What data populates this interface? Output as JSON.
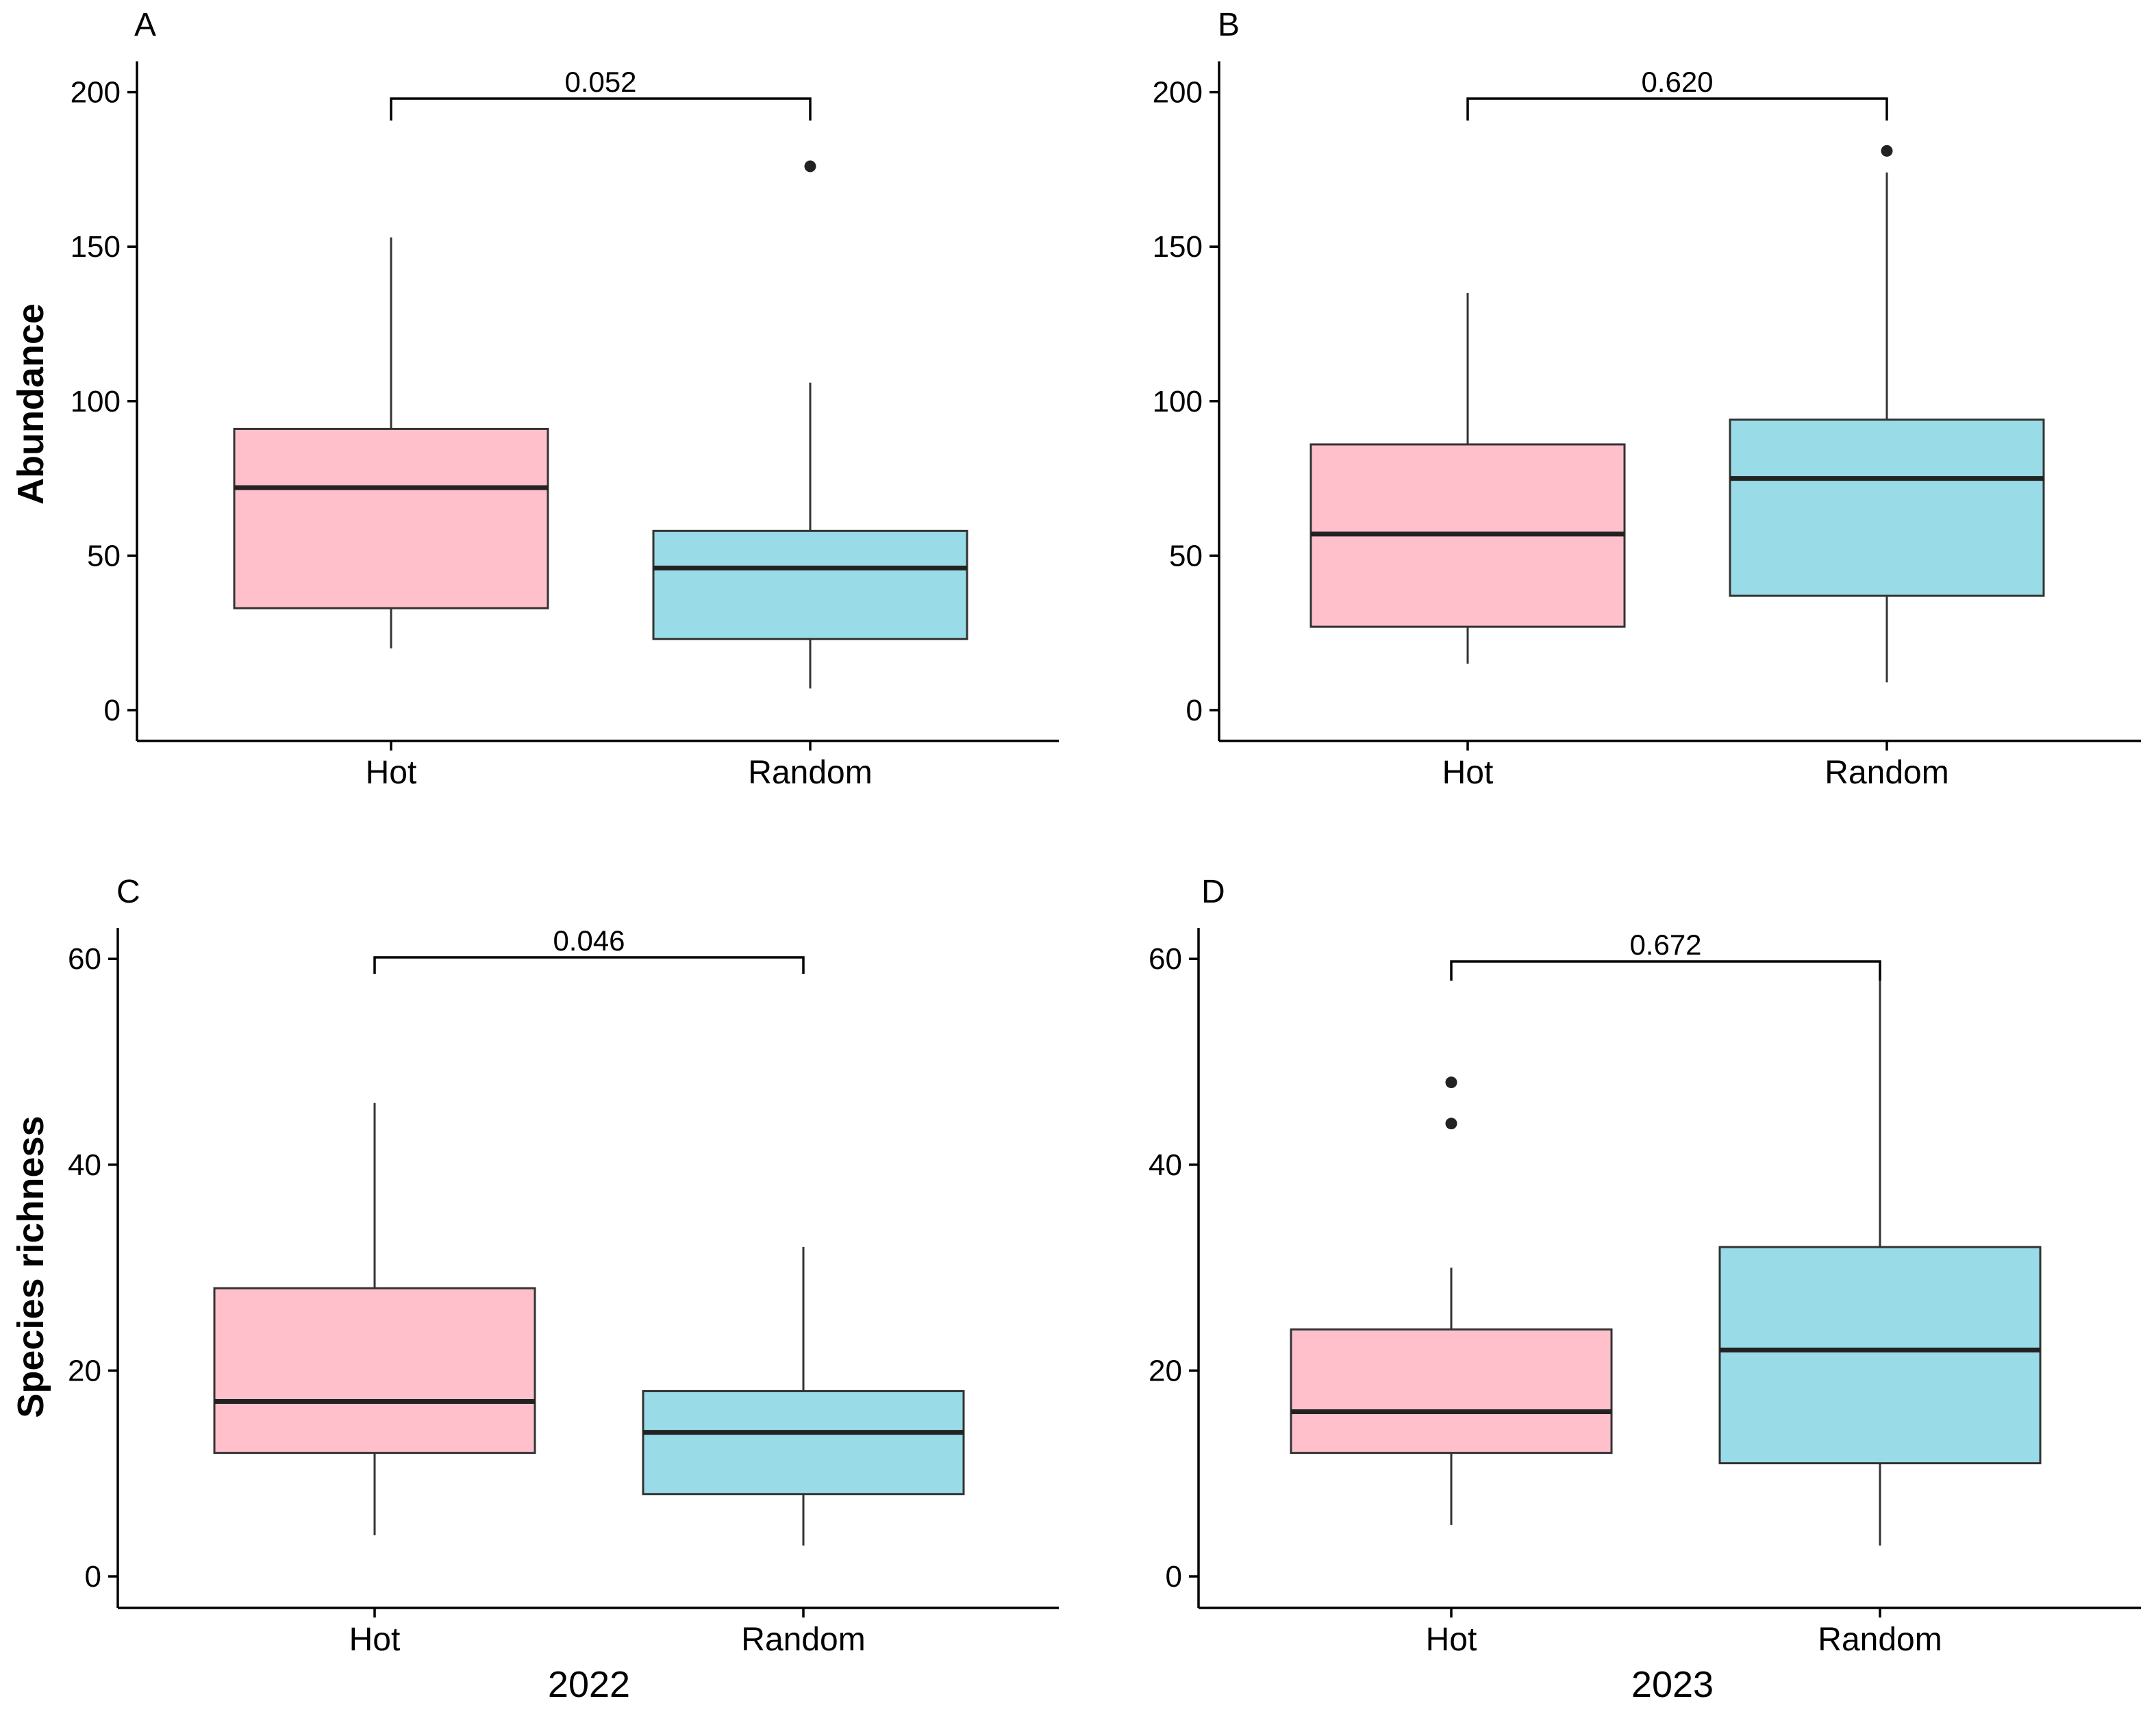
{
  "chart_data": [
    {
      "panel": "A",
      "type": "boxplot",
      "ylabel": "Abundance",
      "xlabel": "",
      "ylim": [
        0,
        210
      ],
      "yticks": [
        0,
        50,
        100,
        150,
        200
      ],
      "categories": [
        "Hot",
        "Random"
      ],
      "p_value": "0.052",
      "boxes": [
        {
          "name": "Hot",
          "color": "#FFC0CB",
          "whisker_low": 20,
          "q1": 33,
          "median": 72,
          "q3": 91,
          "whisker_high": 153,
          "outliers": []
        },
        {
          "name": "Random",
          "color": "#99DBE6",
          "whisker_low": 7,
          "q1": 23,
          "median": 46,
          "q3": 58,
          "whisker_high": 106,
          "outliers": [
            176
          ]
        }
      ]
    },
    {
      "panel": "B",
      "type": "boxplot",
      "ylabel": "",
      "xlabel": "",
      "ylim": [
        0,
        210
      ],
      "yticks": [
        0,
        50,
        100,
        150,
        200
      ],
      "categories": [
        "Hot",
        "Random"
      ],
      "p_value": "0.620",
      "boxes": [
        {
          "name": "Hot",
          "color": "#FFC0CB",
          "whisker_low": 15,
          "q1": 27,
          "median": 57,
          "q3": 86,
          "whisker_high": 135,
          "outliers": []
        },
        {
          "name": "Random",
          "color": "#99DBE6",
          "whisker_low": 9,
          "q1": 37,
          "median": 75,
          "q3": 94,
          "whisker_high": 174,
          "outliers": [
            181
          ]
        }
      ]
    },
    {
      "panel": "C",
      "type": "boxplot",
      "ylabel": "Species richness",
      "xlabel": "2022",
      "ylim": [
        0,
        63
      ],
      "yticks": [
        0,
        20,
        40,
        60
      ],
      "categories": [
        "Hot",
        "Random"
      ],
      "p_value": "0.046",
      "boxes": [
        {
          "name": "Hot",
          "color": "#FFC0CB",
          "whisker_low": 4,
          "q1": 12,
          "median": 17,
          "q3": 28,
          "whisker_high": 46,
          "outliers": []
        },
        {
          "name": "Random",
          "color": "#99DBE6",
          "whisker_low": 3,
          "q1": 8,
          "median": 14,
          "q3": 18,
          "whisker_high": 32,
          "outliers": []
        }
      ]
    },
    {
      "panel": "D",
      "type": "boxplot",
      "ylabel": "",
      "xlabel": "2023",
      "ylim": [
        0,
        63
      ],
      "yticks": [
        0,
        20,
        40,
        60
      ],
      "categories": [
        "Hot",
        "Random"
      ],
      "p_value": "0.672",
      "boxes": [
        {
          "name": "Hot",
          "color": "#FFC0CB",
          "whisker_low": 5,
          "q1": 12,
          "median": 16,
          "q3": 24,
          "whisker_high": 30,
          "outliers": [
            44,
            48
          ]
        },
        {
          "name": "Random",
          "color": "#99DBE6",
          "whisker_low": 3,
          "q1": 11,
          "median": 22,
          "q3": 32,
          "whisker_high": 58,
          "outliers": []
        }
      ]
    }
  ]
}
